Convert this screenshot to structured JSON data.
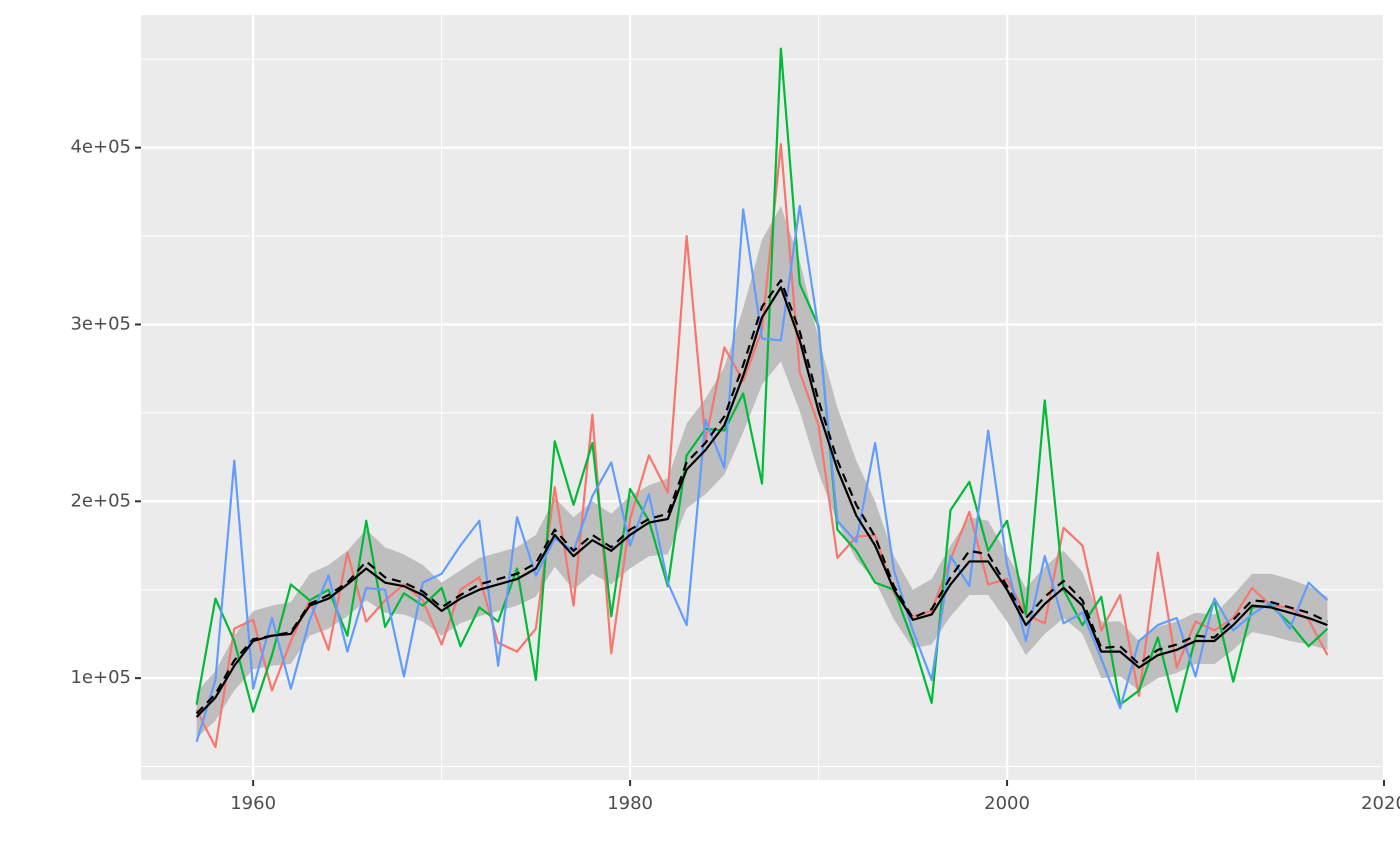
{
  "chart_data": {
    "type": "line",
    "x": [
      1957,
      1958,
      1959,
      1960,
      1961,
      1962,
      1963,
      1964,
      1965,
      1966,
      1967,
      1968,
      1969,
      1970,
      1971,
      1972,
      1973,
      1974,
      1975,
      1976,
      1977,
      1978,
      1979,
      1980,
      1981,
      1982,
      1983,
      1984,
      1985,
      1986,
      1987,
      1988,
      1989,
      1990,
      1991,
      1992,
      1993,
      1994,
      1995,
      1996,
      1997,
      1998,
      1999,
      2000,
      2001,
      2002,
      2003,
      2004,
      2005,
      2006,
      2007,
      2008,
      2009,
      2010,
      2011,
      2012,
      2013,
      2014,
      2015,
      2016,
      2017
    ],
    "xlim": [
      1954.05,
      2020
    ],
    "xticks": [
      1960,
      1980,
      2000,
      2020
    ],
    "x_minor_grid": [
      1970,
      1990,
      2010
    ],
    "ylim": [
      42400,
      475000
    ],
    "yticks": [
      {
        "value": 100000,
        "label": "1e+05"
      },
      {
        "value": 200000,
        "label": "2e+05"
      },
      {
        "value": 300000,
        "label": "3e+05"
      },
      {
        "value": 400000,
        "label": "4e+05"
      }
    ],
    "y_minor_grid": [
      50000,
      150000,
      250000,
      350000,
      450000
    ],
    "grid": true,
    "band": {
      "color": "#bebebe",
      "lower": [
        66000,
        76000,
        93000,
        105000,
        107000,
        108000,
        124000,
        128000,
        135000,
        144000,
        137000,
        136000,
        132000,
        124000,
        131000,
        135000,
        138000,
        141000,
        146000,
        163000,
        150000,
        159000,
        153000,
        162000,
        169000,
        170000,
        196000,
        204000,
        215000,
        239000,
        266000,
        279000,
        251000,
        216000,
        188000,
        167000,
        155000,
        133000,
        117000,
        119000,
        135000,
        147000,
        147000,
        132000,
        113000,
        125000,
        134000,
        125000,
        100000,
        101000,
        93000,
        100000,
        103000,
        108000,
        108000,
        116000,
        126000,
        124000,
        121000,
        119000,
        116000
      ],
      "upper": [
        92000,
        104000,
        124000,
        138000,
        141000,
        143000,
        159000,
        164000,
        172000,
        184000,
        174000,
        170000,
        164000,
        154000,
        161000,
        168000,
        171000,
        174000,
        181000,
        202000,
        191000,
        200000,
        193000,
        203000,
        209000,
        213000,
        244000,
        258000,
        276000,
        309000,
        348000,
        367000,
        336000,
        292000,
        253000,
        223000,
        200000,
        169000,
        150000,
        156000,
        175000,
        191000,
        189000,
        170000,
        151000,
        163000,
        172000,
        160000,
        132000,
        132000,
        121000,
        129000,
        132000,
        137000,
        136000,
        147000,
        159000,
        159000,
        156000,
        152000,
        146000
      ]
    },
    "series": [
      {
        "color": "#F8766D",
        "values": [
          82000,
          61000,
          128000,
          133000,
          93000,
          121000,
          144000,
          116000,
          171000,
          132000,
          144000,
          153000,
          144000,
          119000,
          150000,
          157000,
          120000,
          115000,
          128000,
          208000,
          141000,
          249000,
          114000,
          190000,
          226000,
          205000,
          350000,
          234000,
          287000,
          268000,
          297000,
          402000,
          273000,
          243000,
          168000,
          180000,
          181000,
          148000,
          135000,
          138000,
          167000,
          194000,
          153000,
          156000,
          136000,
          131000,
          185000,
          175000,
          127000,
          147000,
          90000,
          171000,
          106000,
          132000,
          127000,
          134000,
          151000,
          141000,
          140000,
          133000,
          113000
        ]
      },
      {
        "color": "#00BA38",
        "values": [
          85000,
          145000,
          121000,
          81000,
          113000,
          153000,
          144000,
          150000,
          124000,
          189000,
          129000,
          148000,
          141000,
          151000,
          118000,
          140000,
          132000,
          162000,
          99000,
          234000,
          198000,
          233000,
          135000,
          207000,
          189000,
          152000,
          226000,
          241000,
          240000,
          261000,
          210000,
          456000,
          323000,
          299000,
          184000,
          172000,
          154000,
          150000,
          121000,
          86000,
          195000,
          211000,
          172000,
          189000,
          136000,
          257000,
          150000,
          130000,
          146000,
          85000,
          93000,
          123000,
          81000,
          123000,
          144000,
          98000,
          140000,
          141000,
          131000,
          118000,
          128000
        ]
      },
      {
        "color": "#619CFF",
        "values": [
          64000,
          99000,
          223000,
          94000,
          134000,
          94000,
          133000,
          158000,
          115000,
          151000,
          150000,
          101000,
          154000,
          159000,
          175000,
          189000,
          107000,
          191000,
          158000,
          179000,
          172000,
          203000,
          222000,
          175000,
          204000,
          154000,
          130000,
          246000,
          219000,
          365000,
          292000,
          291000,
          367000,
          297000,
          189000,
          177000,
          233000,
          161000,
          127000,
          99000,
          169000,
          152000,
          240000,
          164000,
          121000,
          169000,
          131000,
          137000,
          111000,
          83000,
          121000,
          130000,
          134000,
          101000,
          145000,
          127000,
          136000,
          143000,
          128000,
          154000,
          144000
        ]
      },
      {
        "color": "#000000",
        "values": [
          78000,
          89000,
          107000,
          121000,
          124000,
          125000,
          141000,
          145000,
          153000,
          162000,
          154000,
          152000,
          147000,
          138000,
          145000,
          150000,
          153000,
          156000,
          162000,
          181000,
          169000,
          178000,
          172000,
          181000,
          188000,
          190000,
          218000,
          229000,
          243000,
          271000,
          304000,
          321000,
          291000,
          251000,
          218000,
          192000,
          175000,
          150000,
          133000,
          136000,
          153000,
          166000,
          166000,
          150000,
          130000,
          142000,
          151000,
          141000,
          115000,
          115000,
          106000,
          113000,
          116000,
          121000,
          121000,
          130000,
          141000,
          140000,
          137000,
          134000,
          130000
        ]
      },
      {
        "color": "#000000",
        "dash": true,
        "values": [
          80000,
          91000,
          110000,
          122000,
          124000,
          126000,
          142000,
          147000,
          154000,
          166000,
          157000,
          154000,
          149000,
          140000,
          147000,
          153000,
          156000,
          159000,
          165000,
          184000,
          172000,
          181000,
          174000,
          184000,
          190000,
          193000,
          222000,
          233000,
          248000,
          277000,
          310000,
          325000,
          296000,
          257000,
          223000,
          198000,
          180000,
          152000,
          134000,
          139000,
          157000,
          172000,
          170000,
          152000,
          134000,
          146000,
          155000,
          144000,
          117000,
          118000,
          108000,
          116000,
          119000,
          124000,
          123000,
          133000,
          144000,
          143000,
          140000,
          137000,
          132000
        ]
      }
    ]
  }
}
